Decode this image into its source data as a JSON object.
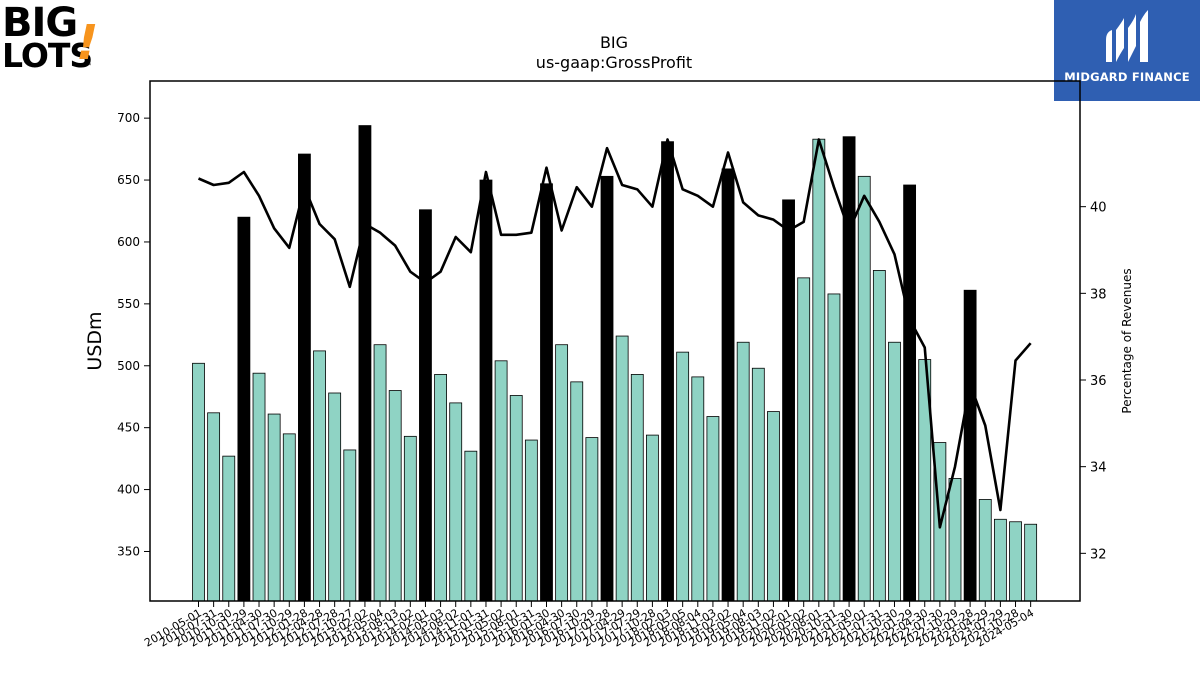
{
  "logos": {
    "left": {
      "line1": "BIG",
      "line2": "LOTS",
      "mark": "!",
      "tm": "™",
      "accent": "#f7941d"
    },
    "right": {
      "name": "MIDGARD FINANCE",
      "bg": "#2f5fb2",
      "icon": "midgard-m-logo-icon"
    }
  },
  "chart_data": {
    "type": "bar",
    "title": "BIG",
    "subtitle": "us-gaap:GrossProfit",
    "ylabel": "USDm",
    "y2label": "Percentage of Revenues",
    "ylim": [
      310,
      730
    ],
    "y2lim": [
      30.9,
      42.9
    ],
    "yticks": [
      350,
      400,
      450,
      500,
      550,
      600,
      650,
      700
    ],
    "y2ticks": [
      32,
      34,
      36,
      38,
      40
    ],
    "grid": false,
    "colors": {
      "quarter_bar": "#8fd3c4",
      "annual_bar": "#000000",
      "line": "#000000"
    },
    "categories": [
      "2010-05-01",
      "2010-07-31",
      "2010-10-30",
      "2011-01-29",
      "2011-04-30",
      "2011-07-30",
      "2011-10-29",
      "2012-01-28",
      "2012-04-28",
      "2012-07-28",
      "2012-10-27",
      "2013-02-02",
      "2013-05-04",
      "2013-08-03",
      "2013-11-02",
      "2014-02-01",
      "2014-05-03",
      "2014-08-02",
      "2014-11-01",
      "2015-01-31",
      "2015-05-02",
      "2015-08-01",
      "2015-10-31",
      "2016-01-30",
      "2016-04-30",
      "2016-07-30",
      "2016-10-29",
      "2017-01-28",
      "2017-04-29",
      "2017-07-29",
      "2017-10-28",
      "2018-02-03",
      "2018-05-05",
      "2018-08-04",
      "2018-11-03",
      "2019-02-02",
      "2019-05-04",
      "2019-08-03",
      "2019-11-02",
      "2020-02-01",
      "2020-05-02",
      "2020-08-01",
      "2020-10-31",
      "2021-01-30",
      "2021-05-01",
      "2021-07-31",
      "2021-10-30",
      "2022-01-29",
      "2022-04-30",
      "2022-07-30",
      "2022-10-29",
      "2023-01-28",
      "2023-04-29",
      "2023-07-29",
      "2023-10-28",
      "2024-05-04"
    ],
    "xtick_labels": [
      "2010-05-01",
      "2010-07-31",
      "2010-10-30",
      "2011-01-29",
      "2011-04-30",
      "2011-07-30",
      "2011-10-29",
      "2012-01-28",
      "2012-04-28",
      "2012-07-28",
      "2012-10-27",
      "2013-02-02",
      "2013-05-04",
      "2013-08-03",
      "2013-11-02",
      "2014-02-01",
      "2014-05-03",
      "2014-08-02",
      "2014-11-01",
      "2015-01-31",
      "2015-05-02",
      "2015-08-01",
      "2015-10-31",
      "2016-01-30",
      "2016-04-30",
      "2016-07-30",
      "2016-10-29",
      "2017-01-28",
      "2017-04-29",
      "2017-07-29",
      "2017-10-28",
      "2018-02-03",
      "2018-05-05",
      "2018-08-04",
      "2018-11-03",
      "2019-02-02",
      "2019-05-04",
      "2019-08-03",
      "2019-11-02",
      "2020-02-01",
      "2020-05-02",
      "2020-08-01",
      "2020-10-31",
      "2021-01-30",
      "2021-05-01",
      "2021-07-31",
      "2021-10-30",
      "2022-01-29",
      "2022-04-30",
      "2022-07-30",
      "2022-10-29",
      "2023-01-28",
      "2023-04-29",
      "2023-07-29",
      "2023-10-28",
      "2024-05-04"
    ],
    "annual_flags": [
      0,
      0,
      0,
      1,
      0,
      0,
      0,
      1,
      0,
      0,
      0,
      1,
      0,
      0,
      0,
      1,
      0,
      0,
      0,
      1,
      0,
      0,
      0,
      1,
      0,
      0,
      0,
      1,
      0,
      0,
      0,
      1,
      0,
      0,
      0,
      1,
      0,
      0,
      0,
      1,
      0,
      0,
      0,
      1,
      0,
      0,
      0,
      1,
      0,
      0,
      0,
      1,
      0,
      0,
      0,
      0
    ],
    "series": [
      {
        "values": [
          502,
          462,
          427,
          620,
          494,
          461,
          445,
          671,
          512,
          478,
          432,
          694,
          517,
          480,
          443,
          626,
          493,
          470,
          431,
          650,
          504,
          476,
          440,
          647,
          517,
          487,
          442,
          653,
          524,
          493,
          444,
          681,
          511,
          491,
          459,
          659,
          519,
          498,
          463,
          634,
          571,
          683,
          558,
          685,
          653,
          577,
          519,
          646,
          505,
          438,
          409,
          561,
          392,
          376,
          374,
          372
        ]
      },
      {
        "axis": "right",
        "values": [
          40.65,
          40.5,
          40.55,
          40.8,
          40.25,
          39.5,
          39.05,
          40.45,
          39.6,
          39.25,
          38.15,
          39.6,
          39.4,
          39.1,
          38.5,
          38.25,
          38.5,
          39.3,
          38.95,
          40.8,
          39.35,
          39.35,
          39.4,
          40.9,
          39.45,
          40.45,
          40.0,
          41.35,
          40.5,
          40.4,
          40.0,
          41.55,
          40.4,
          40.25,
          40.0,
          41.25,
          40.1,
          39.8,
          39.7,
          39.45,
          39.65,
          41.55,
          40.45,
          39.45,
          40.25,
          39.65,
          38.9,
          37.4,
          36.75,
          32.6,
          34.0,
          35.9,
          34.95,
          33.0,
          36.45,
          36.85
        ]
      }
    ]
  }
}
